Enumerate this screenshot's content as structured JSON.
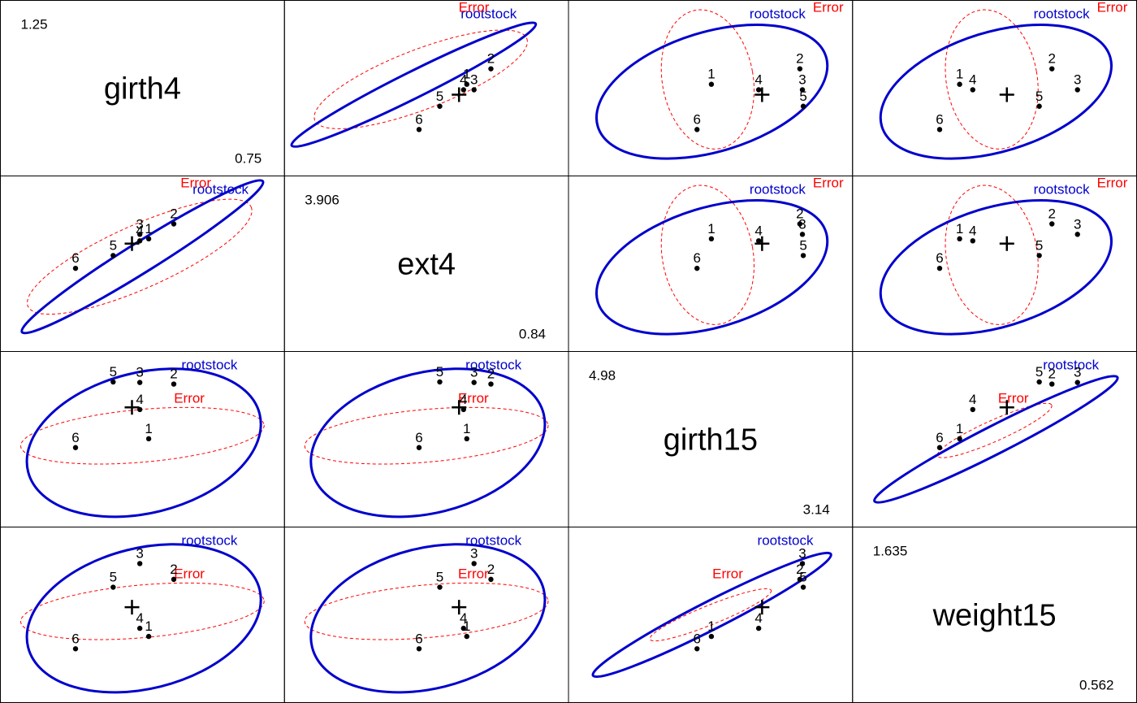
{
  "chart_data": {
    "type": "scatter",
    "description_kind": "HE plot matrix",
    "variables": [
      "girth4",
      "ext4",
      "girth15",
      "weight15"
    ],
    "ranges": {
      "girth4": {
        "min": "0.75",
        "max": "1.25"
      },
      "ext4": {
        "min": "0.84",
        "max": "3.906"
      },
      "girth15": {
        "min": "3.14",
        "max": "4.98"
      },
      "weight15": {
        "min": "0.562",
        "max": "1.635"
      }
    },
    "limits": {
      "girth4": [
        0.75,
        1.25
      ],
      "ext4": [
        0.84,
        3.906
      ],
      "girth15": [
        3.14,
        4.98
      ],
      "weight15": [
        0.562,
        1.635
      ]
    },
    "group_labels": [
      "1",
      "2",
      "3",
      "4",
      "5",
      "6"
    ],
    "group_means": {
      "girth4": [
        1.012,
        1.06,
        0.995,
        0.995,
        0.944,
        0.872
      ],
      "ext4": [
        2.846,
        3.129,
        2.931,
        2.808,
        2.529,
        2.286
      ],
      "girth15": [
        4.066,
        4.689,
        4.707,
        4.399,
        4.713,
        3.965
      ],
      "weight15": [
        0.955,
        1.334,
        1.439,
        1.009,
        1.282,
        0.873
      ]
    },
    "grand_mean": {
      "girth4": 0.98,
      "ext4": 2.755,
      "girth15": 4.423,
      "weight15": 1.149
    },
    "ellipses": {
      "hypothesis": {
        "name": "rootstock",
        "color": "#0000cd"
      },
      "error": {
        "name": "Error",
        "color": "#ff0000"
      }
    }
  }
}
